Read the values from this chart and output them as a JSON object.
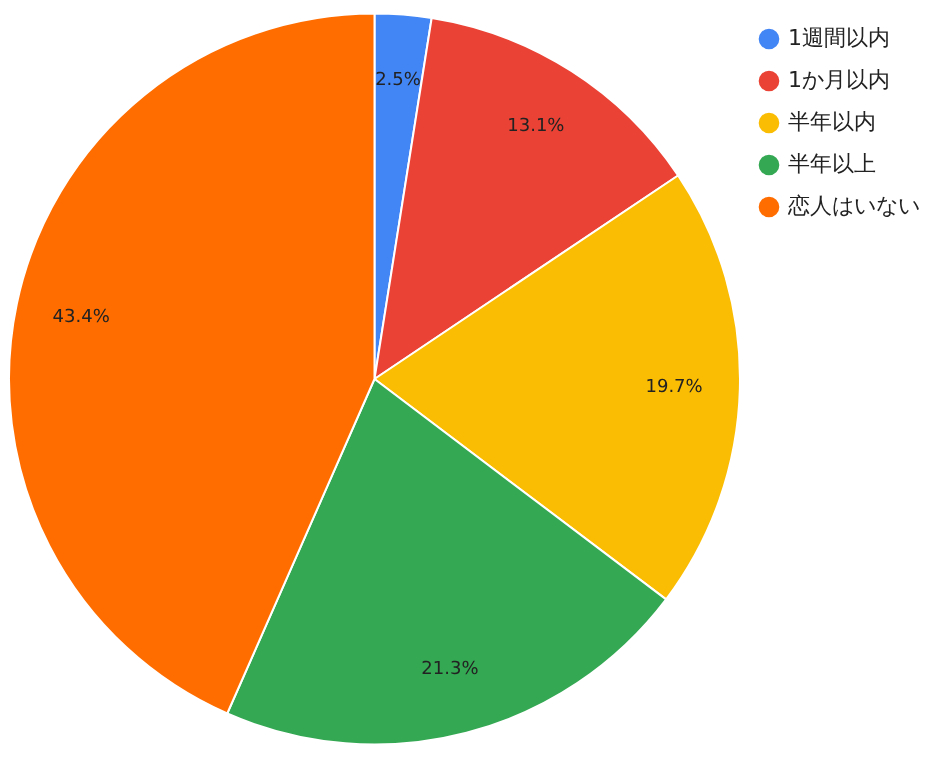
{
  "chart_data": {
    "type": "pie",
    "categories": [
      "1週間以内",
      "1か月以内",
      "半年以内",
      "半年以上",
      "恋人はいない"
    ],
    "values": [
      2.5,
      13.1,
      19.7,
      21.3,
      43.4
    ],
    "colors": [
      "#4285f4",
      "#ea4335",
      "#fbbc04",
      "#34a853",
      "#ff6d01"
    ],
    "value_labels": [
      "2.5%",
      "13.1%",
      "19.7%",
      "21.3%",
      "43.4%"
    ],
    "legend": "top right"
  }
}
